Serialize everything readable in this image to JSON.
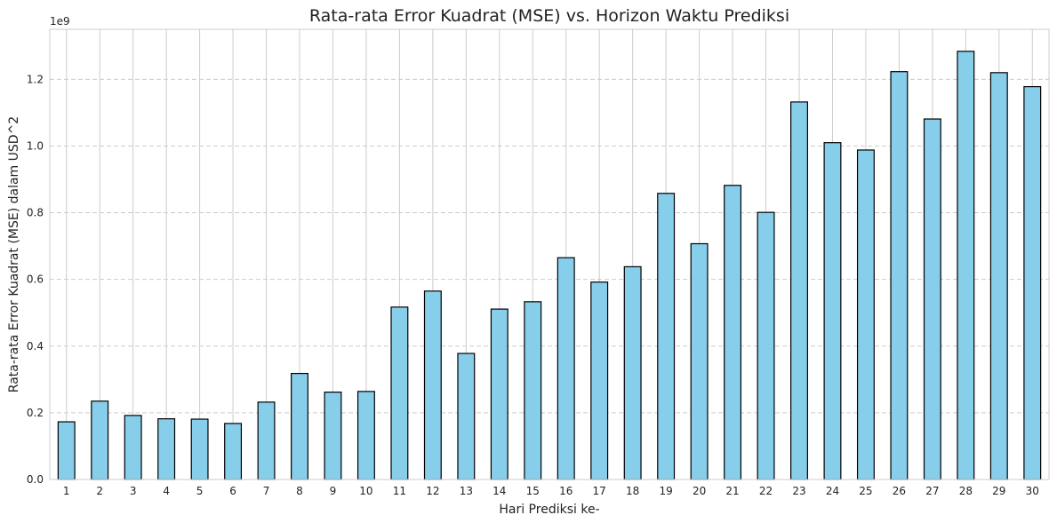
{
  "chart_data": {
    "type": "bar",
    "title": "Rata-rata Error Kuadrat (MSE) vs. Horizon Waktu Prediksi",
    "xlabel": "Hari Prediksi ke-",
    "ylabel": "Rata-rata Error Kuadrat (MSE) dalam USD^2",
    "y_offset_label": "1e9",
    "categories": [
      "1",
      "2",
      "3",
      "4",
      "5",
      "6",
      "7",
      "8",
      "9",
      "10",
      "11",
      "12",
      "13",
      "14",
      "15",
      "16",
      "17",
      "18",
      "19",
      "20",
      "21",
      "22",
      "23",
      "24",
      "25",
      "26",
      "27",
      "28",
      "29",
      "30"
    ],
    "values": [
      0.173,
      0.235,
      0.192,
      0.182,
      0.181,
      0.168,
      0.232,
      0.318,
      0.262,
      0.264,
      0.517,
      0.565,
      0.378,
      0.511,
      0.533,
      0.665,
      0.592,
      0.638,
      0.858,
      0.707,
      0.882,
      0.801,
      1.132,
      1.01,
      0.988,
      1.223,
      1.081,
      1.284,
      1.22,
      1.178
    ],
    "value_scale": 1000000000,
    "ylim": [
      0,
      1.35
    ],
    "yticks": [
      0.0,
      0.2,
      0.4,
      0.6,
      0.8,
      1.0,
      1.2
    ],
    "ytick_labels": [
      "0.0",
      "0.2",
      "0.4",
      "0.6",
      "0.8",
      "1.0",
      "1.2"
    ],
    "grid": true,
    "colors": {
      "bar_fill": "#87CEEB",
      "bar_edge": "#000000",
      "grid": "#cccccc",
      "spine": "#cccccc",
      "text": "#222222"
    }
  }
}
